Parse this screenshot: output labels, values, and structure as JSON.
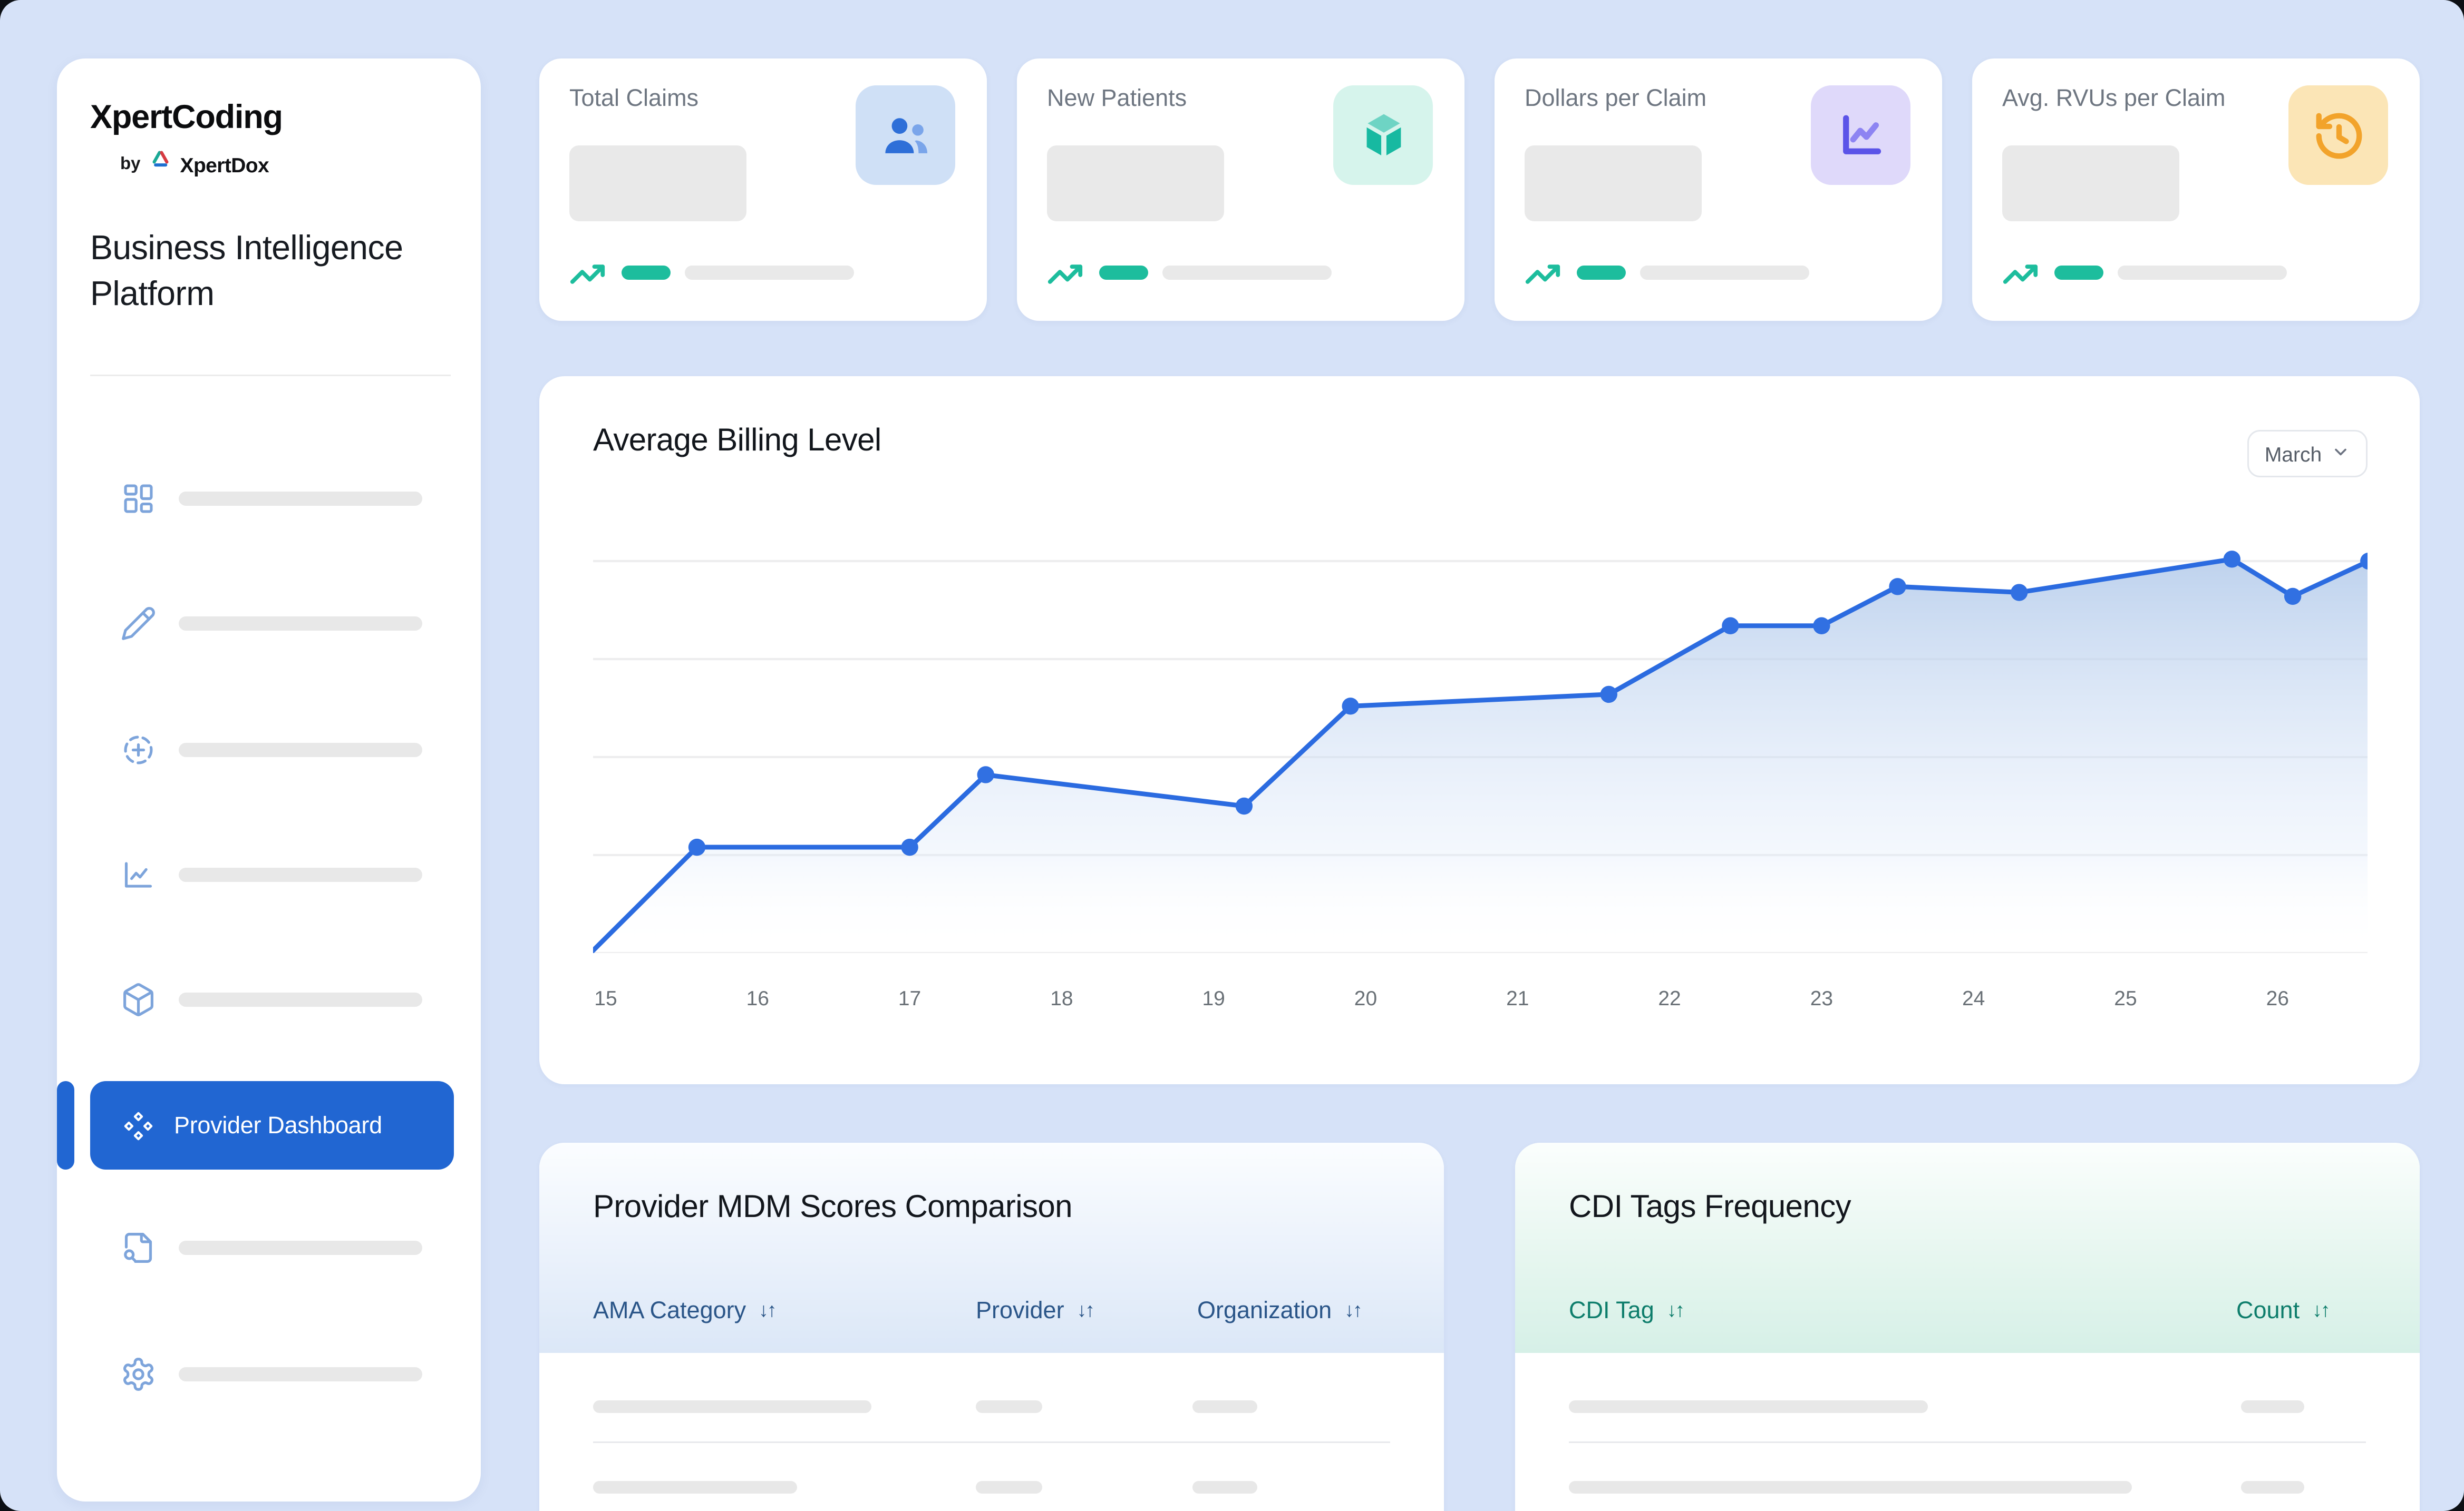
{
  "sidebar": {
    "logo": "XpertCoding",
    "by": "by",
    "brand": "XpertDox",
    "brand_logo_icon": "xpertdox-triangle-icon",
    "platform_title": "Business Intelligence Platform",
    "menu": [
      {
        "type": "placeholder",
        "icon": "dashboard-grid-icon"
      },
      {
        "type": "placeholder",
        "icon": "pencil-icon"
      },
      {
        "type": "placeholder",
        "icon": "circle-plus-dashed-icon"
      },
      {
        "type": "placeholder",
        "icon": "line-chart-icon"
      },
      {
        "type": "placeholder",
        "icon": "box-icon"
      },
      {
        "type": "active",
        "icon": "diamonds-icon",
        "label": "Provider Dashboard"
      },
      {
        "type": "placeholder",
        "icon": "file-search-icon"
      },
      {
        "type": "placeholder",
        "icon": "gear-icon"
      }
    ]
  },
  "stat_cards": [
    {
      "title": "Total Claims",
      "icon": "people-icon",
      "icon_bg": "#cfe0f6"
    },
    {
      "title": "New Patients",
      "icon": "cube-icon",
      "icon_bg": "#d6f4ec"
    },
    {
      "title": "Dollars per Claim",
      "icon": "chart-line-icon",
      "icon_bg": "#dfd9fa"
    },
    {
      "title": "Avg. RVUs per Claim",
      "icon": "history-clock-icon",
      "icon_bg": "#fbe5b6"
    }
  ],
  "chart": {
    "title": "Average Billing Level",
    "month_selector": {
      "value": "March",
      "icon": "chevron-down-icon"
    }
  },
  "chart_data": {
    "type": "area",
    "title": "Average Billing Level",
    "x": [
      14.9,
      15.6,
      17.0,
      17.5,
      19.2,
      19.9,
      21.6,
      22.4,
      23.0,
      23.5,
      24.3,
      25.7,
      26.1,
      26.6
    ],
    "values": [
      0,
      27,
      27,
      45.5,
      37.5,
      63,
      66,
      83.5,
      83.5,
      93.5,
      92,
      100.5,
      91,
      100
    ],
    "x_ticks": [
      15,
      16,
      17,
      18,
      19,
      20,
      21,
      22,
      23,
      24,
      25,
      26
    ],
    "ylim": [
      0,
      110
    ],
    "gridline_values": [
      0,
      25,
      50,
      75,
      100
    ],
    "grid": "horizontal",
    "legend": "none",
    "line_color": "#2b6be0",
    "marker": "filled circle on every point except the first",
    "fill": "vertical gradient from light blue to transparent"
  },
  "tables": {
    "mdm": {
      "title": "Provider MDM Scores Comparison",
      "columns": [
        "AMA Category",
        "Provider",
        "Organization"
      ],
      "sort_glyph": "↓↑",
      "placeholder_rows": 2
    },
    "cdi": {
      "title": "CDI Tags Frequency",
      "columns": [
        "CDI Tag",
        "Count"
      ],
      "sort_glyph": "↓↑",
      "placeholder_rows": 2
    }
  },
  "colors": {
    "page_bg": "#d6e2f8",
    "accent_blue": "#2166d2",
    "trend_green": "#1dbd9d",
    "sidebar_icon_blue": "#7da4db",
    "chart_line": "#2b6be0",
    "mdm_header_text": "#2a5588",
    "cdi_header_text": "#0d7d6b",
    "placeholder_gray": "#e8e8e8"
  }
}
